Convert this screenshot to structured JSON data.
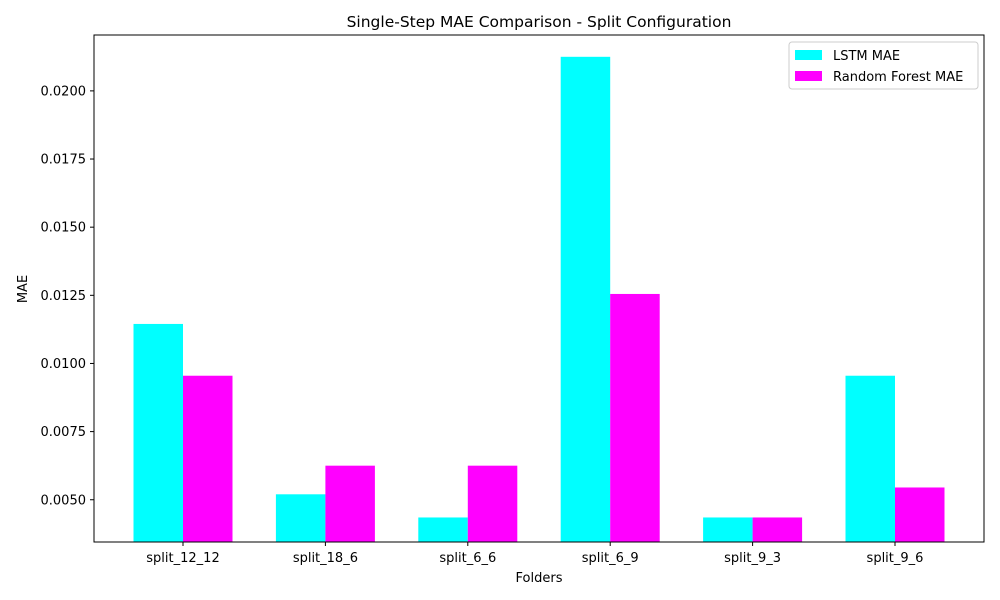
{
  "chart_data": {
    "type": "bar",
    "title": "Single-Step MAE Comparison - Split Configuration",
    "xlabel": "Folders",
    "ylabel": "MAE",
    "categories": [
      "split_12_12",
      "split_18_6",
      "split_6_6",
      "split_6_9",
      "split_9_3",
      "split_9_6"
    ],
    "series": [
      {
        "name": "LSTM MAE",
        "color": "#00ffff",
        "values": [
          0.01145,
          0.0052,
          0.00435,
          0.02125,
          0.00435,
          0.00955
        ]
      },
      {
        "name": "Random Forest MAE",
        "color": "#ff00ff",
        "values": [
          0.00955,
          0.00625,
          0.00625,
          0.01255,
          0.00435,
          0.00545
        ]
      }
    ],
    "ylim": [
      0.00345,
      0.02205
    ],
    "yticks": [
      "0.0050",
      "0.0075",
      "0.0100",
      "0.0125",
      "0.0150",
      "0.0175",
      "0.0200"
    ],
    "grid": false,
    "legend_position": "upper right"
  }
}
